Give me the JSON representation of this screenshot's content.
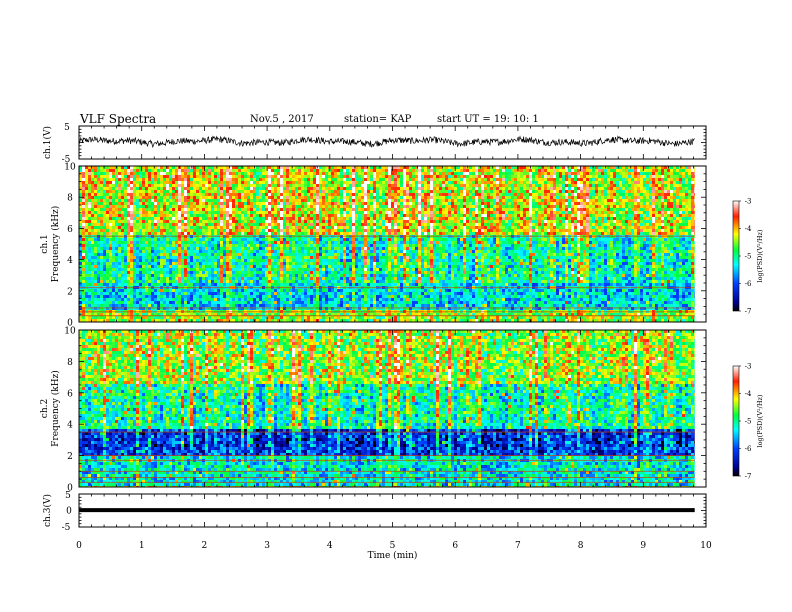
{
  "header": {
    "title": "VLF Spectra",
    "date": "Nov.5 , 2017",
    "station": "station= KAP",
    "start_time": "start UT = 19: 10: 1"
  },
  "chart_data": [
    {
      "type": "line",
      "panel": "ch1-waveform",
      "ylabel": "ch.1(V)",
      "ylim": [
        -5,
        5
      ],
      "yticks": [
        "5",
        "-5"
      ],
      "series_color": "#000000",
      "note_values": "waveform samples approx. between -1.3 and 1.6 V, mean ~0.3 V"
    },
    {
      "type": "heatmap",
      "panel": "ch1-spectrogram",
      "ylabel": "ch.1",
      "ylabel2": "Frequency (kHz)",
      "ylim": [
        0,
        10
      ],
      "yticks": [
        "0",
        "2",
        "4",
        "6",
        "8",
        "10"
      ],
      "colorbar": {
        "label": "log(PSD)(V²/Hz)",
        "range": [
          -7,
          -3
        ],
        "ticks": [
          "-3",
          "-4",
          "-5",
          "-6",
          "-7"
        ]
      },
      "bands": [
        {
          "f_min": 0,
          "f_max": 0.7,
          "level": -4.5
        },
        {
          "f_min": 0.7,
          "f_max": 2.5,
          "level": -5.4
        },
        {
          "f_min": 2.5,
          "f_max": 5.5,
          "level": -5.0
        },
        {
          "f_min": 5.5,
          "f_max": 10,
          "level": -4.2
        }
      ],
      "line_freqs_khz": [
        0.4,
        0.65,
        0.9,
        2.2,
        5.5
      ]
    },
    {
      "type": "heatmap",
      "panel": "ch2-spectrogram",
      "ylabel": "ch.2",
      "ylabel2": "Frequency (kHz)",
      "ylim": [
        0,
        10
      ],
      "yticks": [
        "0",
        "2",
        "4",
        "6",
        "8",
        "10"
      ],
      "colorbar": {
        "label": "log(PSD)(V²/Hz)",
        "range": [
          -7,
          -3
        ],
        "ticks": [
          "-3",
          "-4",
          "-5",
          "-6",
          "-7"
        ]
      },
      "bands": [
        {
          "f_min": 0,
          "f_max": 1.9,
          "level": -5.3
        },
        {
          "f_min": 1.9,
          "f_max": 3.6,
          "level": -6.1
        },
        {
          "f_min": 3.6,
          "f_max": 6.5,
          "level": -5.0
        },
        {
          "f_min": 6.5,
          "f_max": 10,
          "level": -4.4
        }
      ],
      "line_freqs_khz": [
        0.3,
        0.6,
        1.0,
        1.7,
        2.0,
        3.5
      ]
    },
    {
      "type": "line",
      "panel": "ch3-waveform",
      "ylabel": "ch.3(V)",
      "ylim": [
        -5,
        5
      ],
      "yticks": [
        "5",
        "0",
        "-5"
      ],
      "values_constant": 0.1,
      "series_color": "#000000"
    }
  ],
  "x_axis": {
    "xlabel": "Time (min)",
    "xlim": [
      0,
      10
    ],
    "ticks": [
      "0",
      "1",
      "2",
      "3",
      "4",
      "5",
      "6",
      "7",
      "8",
      "9",
      "10"
    ],
    "data_end_min": 9.82
  }
}
